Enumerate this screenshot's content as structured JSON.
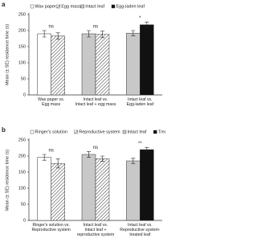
{
  "chart_data": [
    {
      "type": "bar",
      "panel": "a",
      "ylabel": "Mean (± SE) residence time (s)",
      "categories": [
        "Wax paper vs.\nEgg mass",
        "Intact leaf vs.\nIntact leaf + egg mass",
        "Intact leaf vs.\nEgg-laden leaf"
      ],
      "series": [
        {
          "name": "Wax paper",
          "color": "#ffffff",
          "hatch": false,
          "values": [
            190,
            null,
            null
          ],
          "errors": [
            10,
            null,
            null
          ]
        },
        {
          "name": "Egg mass",
          "color": "#ffffff",
          "hatch": true,
          "values": [
            183,
            188,
            null
          ],
          "errors": [
            10,
            10,
            null
          ]
        },
        {
          "name": "Intact leaf",
          "color": "#c8c8c8",
          "hatch": false,
          "values": [
            null,
            190,
            192
          ],
          "errors": [
            null,
            10,
            8
          ]
        },
        {
          "name": "Egg-laden leaf",
          "color": "#111111",
          "hatch": false,
          "values": [
            null,
            null,
            218
          ],
          "errors": [
            null,
            null,
            8
          ]
        }
      ],
      "annotations": [
        "ns",
        "ns",
        "*"
      ],
      "ylim": [
        0,
        250
      ],
      "yticks": [
        0,
        50,
        100,
        150,
        200,
        250
      ]
    },
    {
      "type": "bar",
      "panel": "b",
      "ylabel": "Mean (± SE) residence time (s)",
      "categories": [
        "Ringer's solution vs.\nReproductive system",
        "Intact leaf vs.\nIntact leaf +\nreproductive system",
        "Intact leaf vs.\nReproductive system-\ntreated leaf"
      ],
      "series": [
        {
          "name": "Ringer's solution",
          "color": "#ffffff",
          "hatch": false,
          "values": [
            196,
            null,
            null
          ],
          "errors": [
            9,
            null,
            null
          ]
        },
        {
          "name": "Reproductive system",
          "color": "#ffffff",
          "hatch": true,
          "values": [
            177,
            192,
            null
          ],
          "errors": [
            14,
            8,
            null
          ]
        },
        {
          "name": "Intact leaf",
          "color": "#c8c8c8",
          "hatch": false,
          "values": [
            null,
            205,
            185
          ],
          "errors": [
            null,
            9,
            8
          ]
        },
        {
          "name": "Treated leaf",
          "color": "#111111",
          "hatch": false,
          "values": [
            null,
            null,
            220
          ],
          "errors": [
            null,
            null,
            7
          ]
        }
      ],
      "annotations": [
        "ns",
        "ns",
        "**"
      ],
      "ylim": [
        0,
        250
      ],
      "yticks": [
        0,
        50,
        100,
        150,
        200,
        250
      ]
    }
  ]
}
